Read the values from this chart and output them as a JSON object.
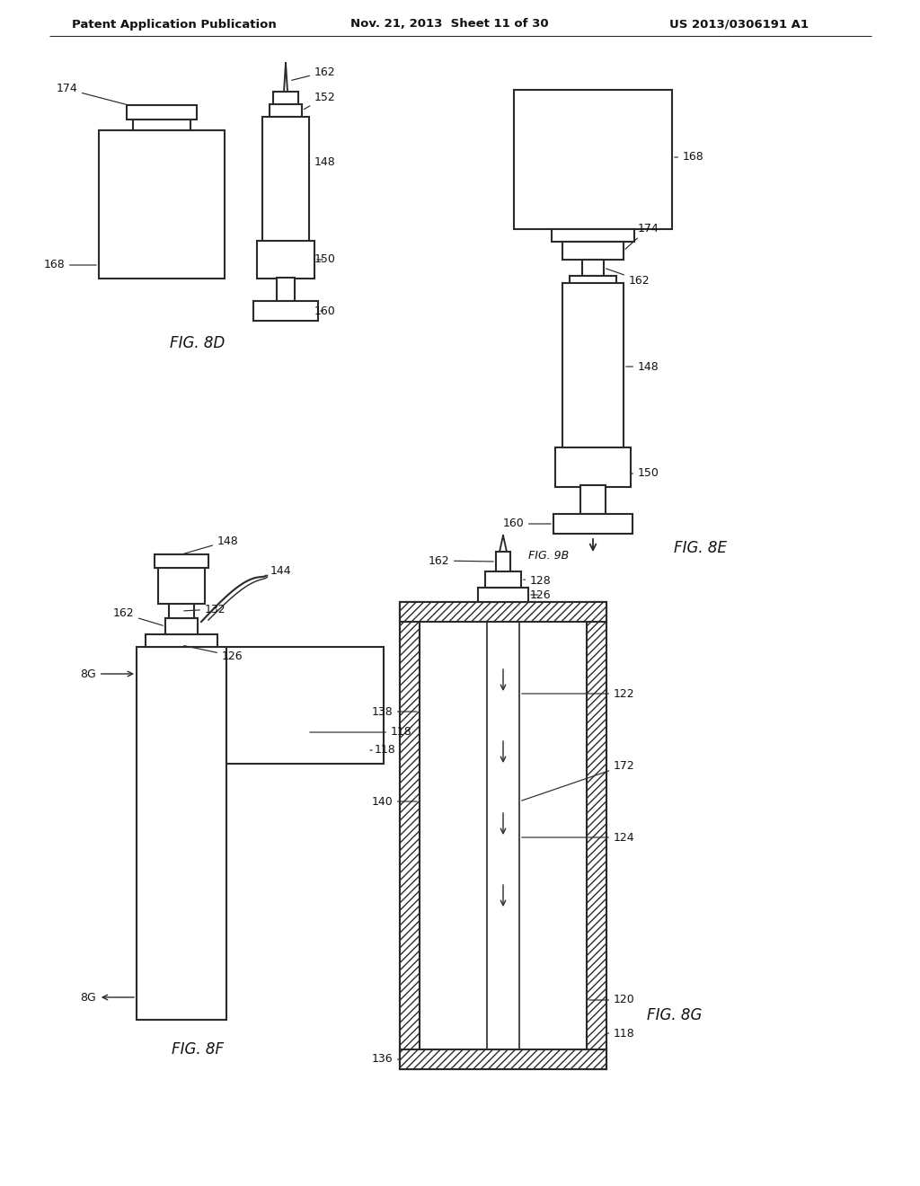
{
  "background_color": "#ffffff",
  "header_left": "Patent Application Publication",
  "header_mid": "Nov. 21, 2013  Sheet 11 of 30",
  "header_right": "US 2013/0306191 A1",
  "line_color": "#2a2a2a",
  "line_width": 1.5
}
